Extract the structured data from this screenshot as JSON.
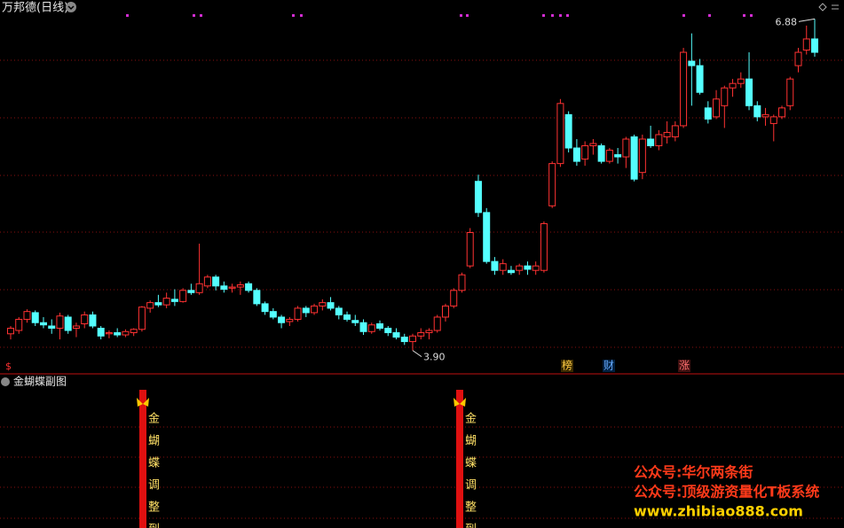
{
  "header": {
    "title": "万邦德(日线)"
  },
  "chart_data": {
    "type": "candlestick",
    "open": [
      4.05,
      4.08,
      4.18,
      4.24,
      4.15,
      4.12,
      4.1,
      4.2,
      4.1,
      4.14,
      4.22,
      4.1,
      4.05,
      4.06,
      4.04,
      4.06,
      4.09,
      4.28,
      4.33,
      4.31,
      4.36,
      4.34,
      4.44,
      4.42,
      4.48,
      4.56,
      4.48,
      4.46,
      4.47,
      4.5,
      4.44,
      4.32,
      4.25,
      4.2,
      4.16,
      4.18,
      4.28,
      4.24,
      4.3,
      4.33,
      4.28,
      4.22,
      4.17,
      4.15,
      4.07,
      4.14,
      4.1,
      4.06,
      4.02,
      3.98,
      4.03,
      4.06,
      4.08,
      4.2,
      4.3,
      4.44,
      4.66,
      5.42,
      5.14,
      4.7,
      4.62,
      4.62,
      4.62,
      4.66,
      4.62,
      4.62,
      5.2,
      5.58,
      6.02,
      5.72,
      5.62,
      5.74,
      5.74,
      5.6,
      5.66,
      5.64,
      5.82,
      5.5,
      5.8,
      5.74,
      5.82,
      5.82,
      5.92,
      6.5,
      6.46,
      6.08,
      6.0,
      6.1,
      6.26,
      6.3,
      6.34,
      6.1,
      6.0,
      5.94,
      6.0,
      6.1,
      6.46,
      6.6,
      6.7
    ],
    "high": [
      4.12,
      4.2,
      4.27,
      4.26,
      4.2,
      4.18,
      4.24,
      4.22,
      4.15,
      4.25,
      4.25,
      4.12,
      4.08,
      4.1,
      4.09,
      4.1,
      4.3,
      4.35,
      4.4,
      4.42,
      4.45,
      4.46,
      4.5,
      4.86,
      4.58,
      4.58,
      4.52,
      4.5,
      4.52,
      4.52,
      4.46,
      4.34,
      4.28,
      4.22,
      4.2,
      4.3,
      4.3,
      4.32,
      4.36,
      4.38,
      4.3,
      4.25,
      4.22,
      4.18,
      4.15,
      4.17,
      4.12,
      4.1,
      4.05,
      4.05,
      4.1,
      4.1,
      4.22,
      4.32,
      4.46,
      4.6,
      5.0,
      5.48,
      5.18,
      4.74,
      4.72,
      4.66,
      4.68,
      4.7,
      4.7,
      5.06,
      5.6,
      6.16,
      6.05,
      5.8,
      5.78,
      5.8,
      5.76,
      5.72,
      5.72,
      5.82,
      5.84,
      5.84,
      5.92,
      5.88,
      5.96,
      5.96,
      6.62,
      6.75,
      6.52,
      6.14,
      6.24,
      6.28,
      6.34,
      6.4,
      6.58,
      6.14,
      6.08,
      6.02,
      6.1,
      6.36,
      6.62,
      6.82,
      6.88
    ],
    "low": [
      4.0,
      4.05,
      4.15,
      4.12,
      4.1,
      4.05,
      4.0,
      4.05,
      4.02,
      4.1,
      4.1,
      4.0,
      4.01,
      4.02,
      4.02,
      4.03,
      4.07,
      4.24,
      4.29,
      4.28,
      4.3,
      4.33,
      4.4,
      4.4,
      4.46,
      4.44,
      4.42,
      4.42,
      4.4,
      4.42,
      4.3,
      4.22,
      4.18,
      4.1,
      4.12,
      4.16,
      4.2,
      4.22,
      4.26,
      4.26,
      4.18,
      4.16,
      4.12,
      4.04,
      4.05,
      4.08,
      4.03,
      4.0,
      3.95,
      3.9,
      4.0,
      4.0,
      4.06,
      4.16,
      4.28,
      4.42,
      4.64,
      5.1,
      4.68,
      4.58,
      4.58,
      4.58,
      4.58,
      4.58,
      4.58,
      4.6,
      5.18,
      5.55,
      5.68,
      5.56,
      5.56,
      5.66,
      5.58,
      5.58,
      5.58,
      5.54,
      5.42,
      5.44,
      5.72,
      5.7,
      5.76,
      5.78,
      5.9,
      6.1,
      6.2,
      5.94,
      5.98,
      5.9,
      6.18,
      6.26,
      6.06,
      5.96,
      5.92,
      5.78,
      5.98,
      6.06,
      6.4,
      6.56,
      6.54
    ],
    "close": [
      4.1,
      4.18,
      4.25,
      4.15,
      4.13,
      4.1,
      4.21,
      4.08,
      4.12,
      4.22,
      4.12,
      4.03,
      4.06,
      4.04,
      4.07,
      4.09,
      4.29,
      4.33,
      4.31,
      4.37,
      4.34,
      4.44,
      4.42,
      4.5,
      4.56,
      4.48,
      4.45,
      4.47,
      4.49,
      4.44,
      4.32,
      4.25,
      4.2,
      4.15,
      4.18,
      4.28,
      4.24,
      4.3,
      4.33,
      4.28,
      4.22,
      4.18,
      4.15,
      4.07,
      4.13,
      4.1,
      4.06,
      4.02,
      3.98,
      4.03,
      4.06,
      4.08,
      4.2,
      4.3,
      4.44,
      4.58,
      4.96,
      5.14,
      4.7,
      4.62,
      4.68,
      4.6,
      4.66,
      4.63,
      4.66,
      5.04,
      5.58,
      6.12,
      5.72,
      5.6,
      5.74,
      5.76,
      5.6,
      5.7,
      5.64,
      5.8,
      5.44,
      5.8,
      5.74,
      5.84,
      5.86,
      5.92,
      6.58,
      6.46,
      6.22,
      5.98,
      6.16,
      6.26,
      6.3,
      6.34,
      6.1,
      6.0,
      6.02,
      6.0,
      6.08,
      6.34,
      6.58,
      6.7,
      6.58
    ],
    "up_color": "#ff3232",
    "down_color": "#54ffff",
    "ylim": [
      3.69,
      7.05
    ],
    "annotations": [
      {
        "value": 6.88,
        "label": "6.88"
      },
      {
        "value": 3.9,
        "label": "3.90"
      }
    ]
  },
  "markers": [
    "$",
    "榜",
    "财",
    "涨"
  ],
  "indicator": {
    "title": "金蝴蝶副图",
    "signal_text": [
      "金",
      "蝴",
      "蝶",
      "调",
      "整",
      "到"
    ]
  },
  "watermarks": [
    "公众号:华尔两条街",
    "公众号:顶级游资量化T板系统",
    "www.zhibiao888.com"
  ]
}
